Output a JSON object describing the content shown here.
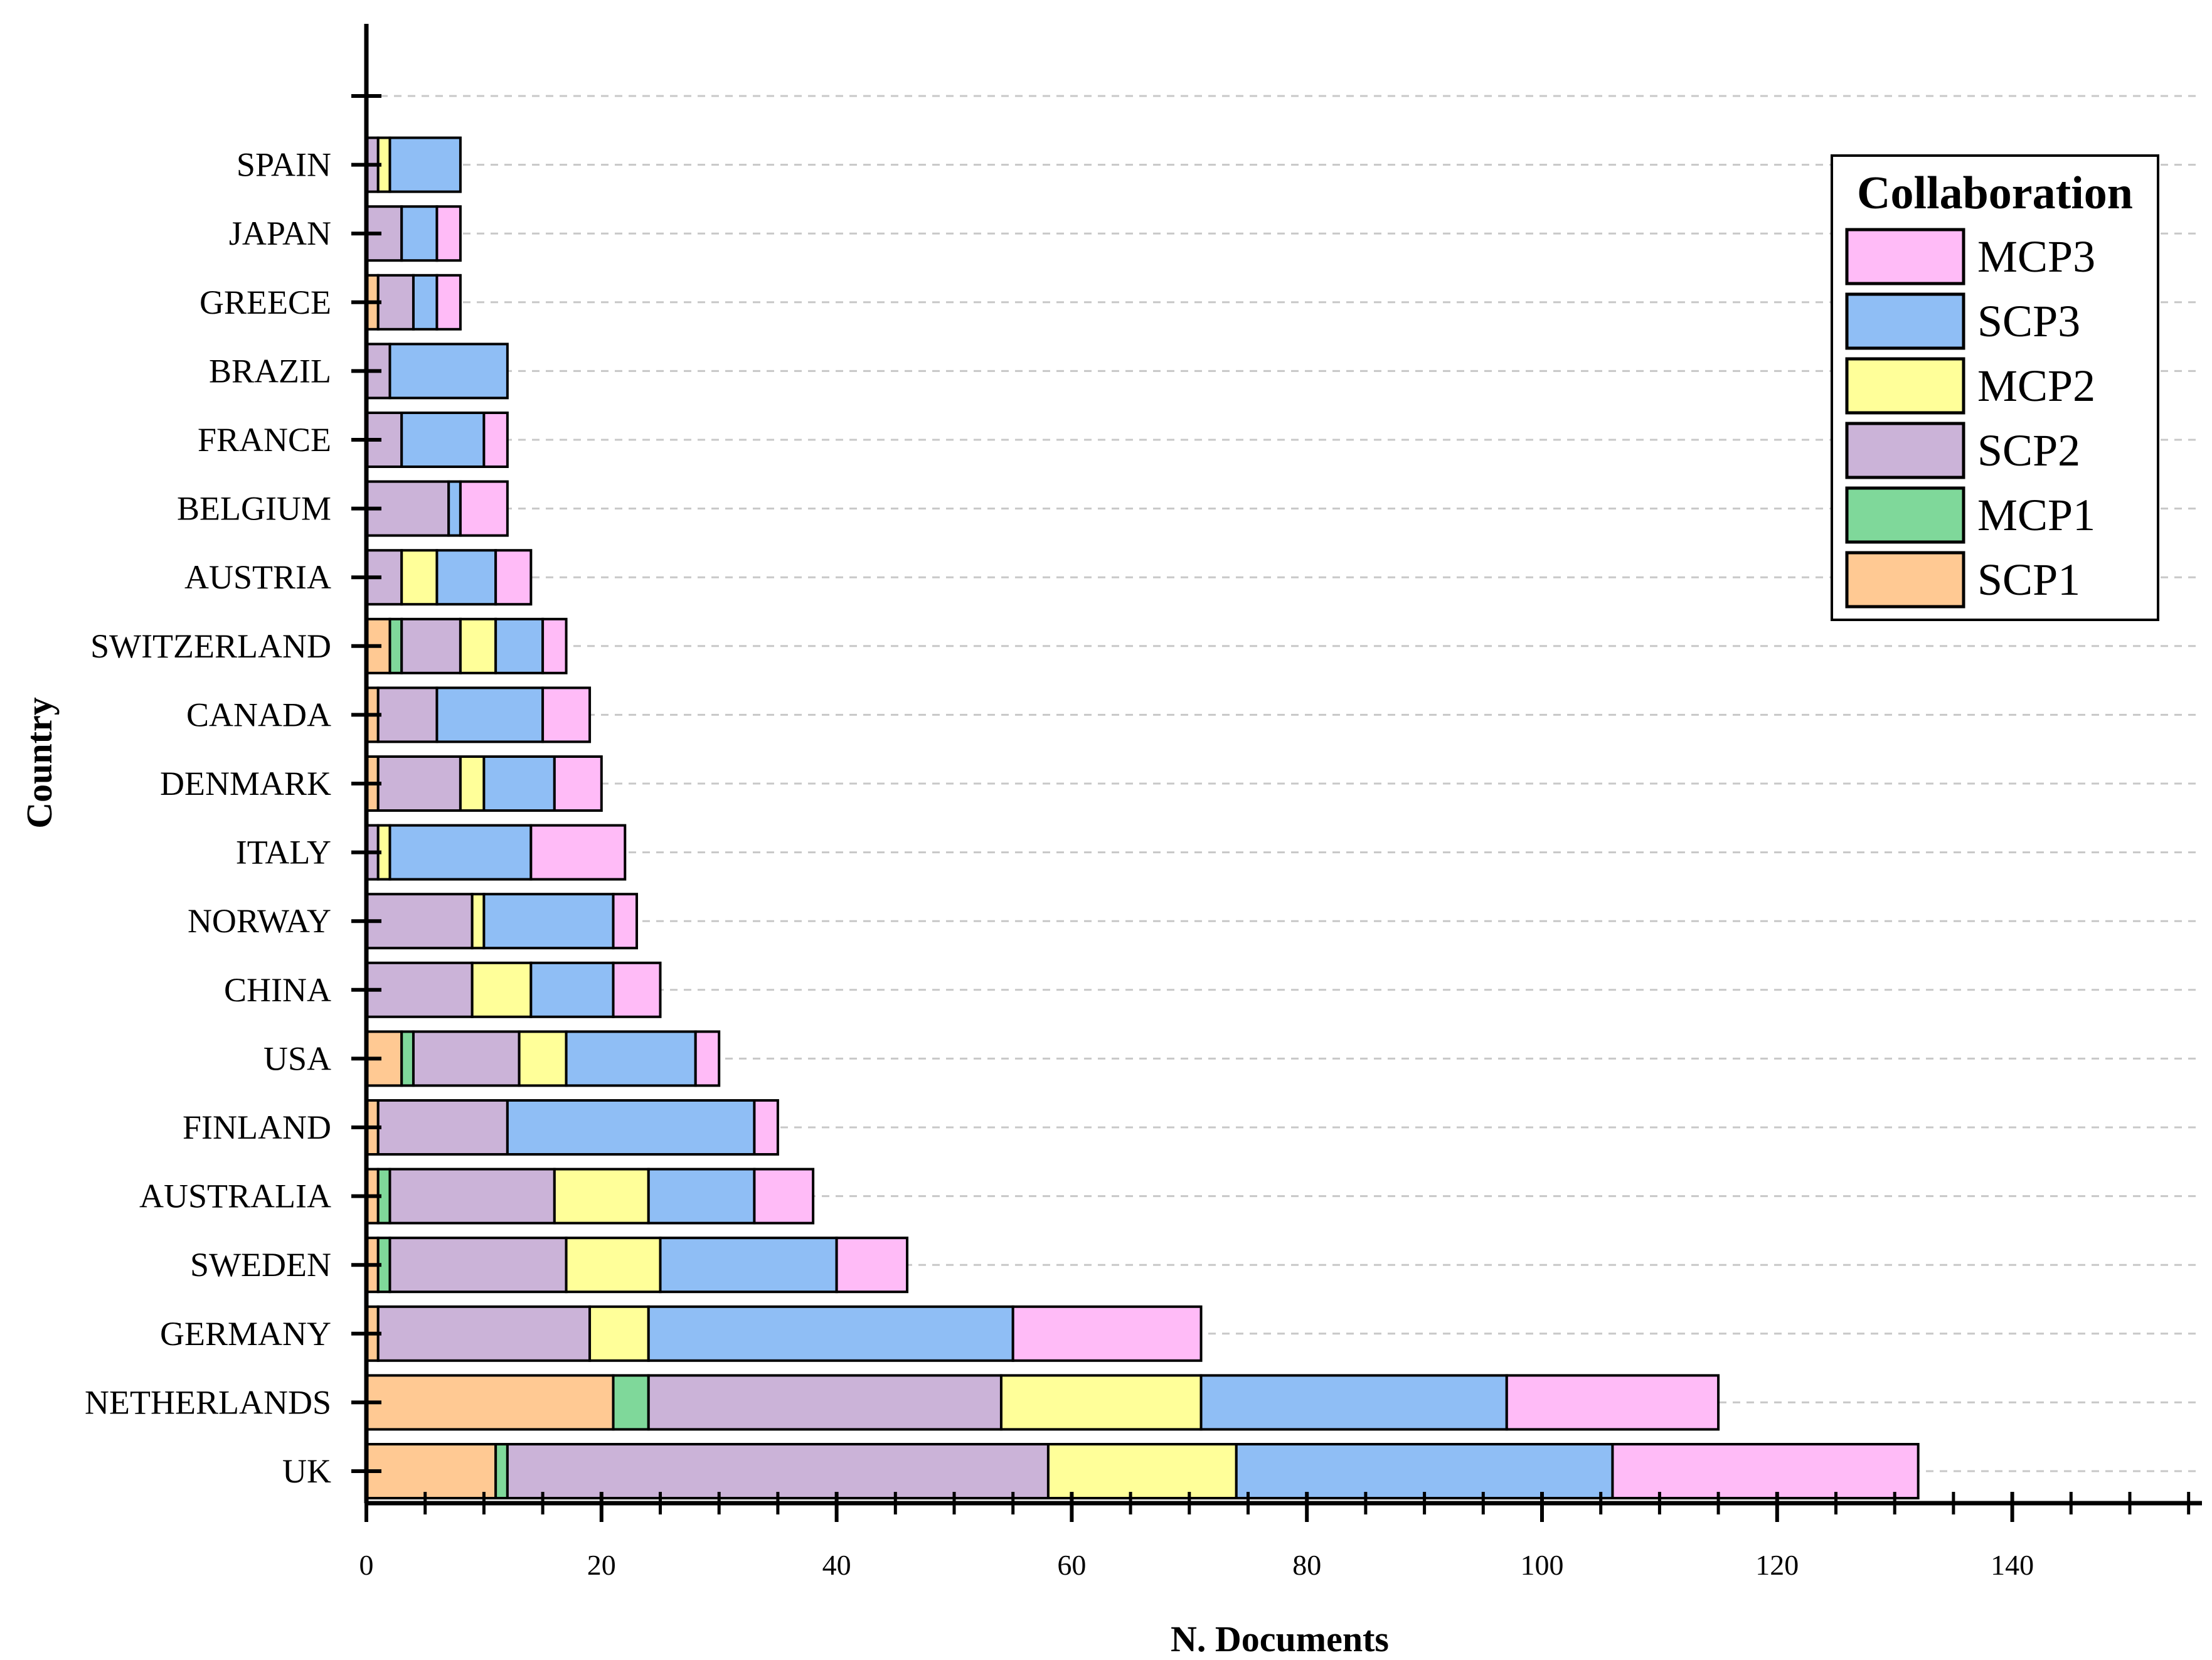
{
  "chart_data": {
    "type": "bar",
    "orientation": "horizontal",
    "stacked": true,
    "xlabel": "N. Documents",
    "ylabel": "Country",
    "xlim": [
      0,
      155
    ],
    "xticks": [
      0,
      20,
      40,
      60,
      80,
      100,
      120,
      140
    ],
    "grid": "horizontal dashed",
    "legend": {
      "title": "Collaboration",
      "placement": "top-right",
      "order": [
        "MCP3",
        "SCP3",
        "MCP2",
        "SCP2",
        "MCP1",
        "SCP1"
      ]
    },
    "categories": [
      "UK",
      "NETHERLANDS",
      "GERMANY",
      "SWEDEN",
      "AUSTRALIA",
      "FINLAND",
      "USA",
      "CHINA",
      "NORWAY",
      "ITALY",
      "DENMARK",
      "CANADA",
      "SWITZERLAND",
      "AUSTRIA",
      "BELGIUM",
      "FRANCE",
      "BRAZIL",
      "GREECE",
      "JAPAN",
      "SPAIN"
    ],
    "series": [
      {
        "name": "SCP1",
        "color": "#FFC993",
        "values": [
          11,
          21,
          1,
          1,
          1,
          1,
          3,
          0,
          0,
          0,
          1,
          1,
          2,
          0,
          0,
          0,
          0,
          1,
          0,
          0
        ]
      },
      {
        "name": "MCP1",
        "color": "#7FD89A",
        "values": [
          1,
          3,
          0,
          1,
          1,
          0,
          1,
          0,
          0,
          0,
          0,
          0,
          1,
          0,
          0,
          0,
          0,
          0,
          0,
          0
        ]
      },
      {
        "name": "SCP2",
        "color": "#CBB3D8",
        "values": [
          46,
          30,
          18,
          15,
          14,
          11,
          9,
          9,
          9,
          1,
          7,
          5,
          5,
          3,
          7,
          3,
          2,
          3,
          3,
          1
        ]
      },
      {
        "name": "MCP2",
        "color": "#FFFF99",
        "values": [
          16,
          17,
          5,
          8,
          8,
          0,
          4,
          5,
          1,
          1,
          2,
          0,
          3,
          3,
          0,
          0,
          0,
          0,
          0,
          1
        ]
      },
      {
        "name": "SCP3",
        "color": "#8FBEF5",
        "values": [
          32,
          26,
          31,
          15,
          9,
          21,
          11,
          7,
          11,
          12,
          6,
          9,
          4,
          5,
          1,
          7,
          10,
          2,
          3,
          6
        ]
      },
      {
        "name": "MCP3",
        "color": "#FFBBF7",
        "values": [
          26,
          18,
          16,
          6,
          5,
          2,
          2,
          4,
          2,
          8,
          4,
          4,
          2,
          3,
          4,
          2,
          0,
          2,
          2,
          0
        ]
      }
    ]
  }
}
